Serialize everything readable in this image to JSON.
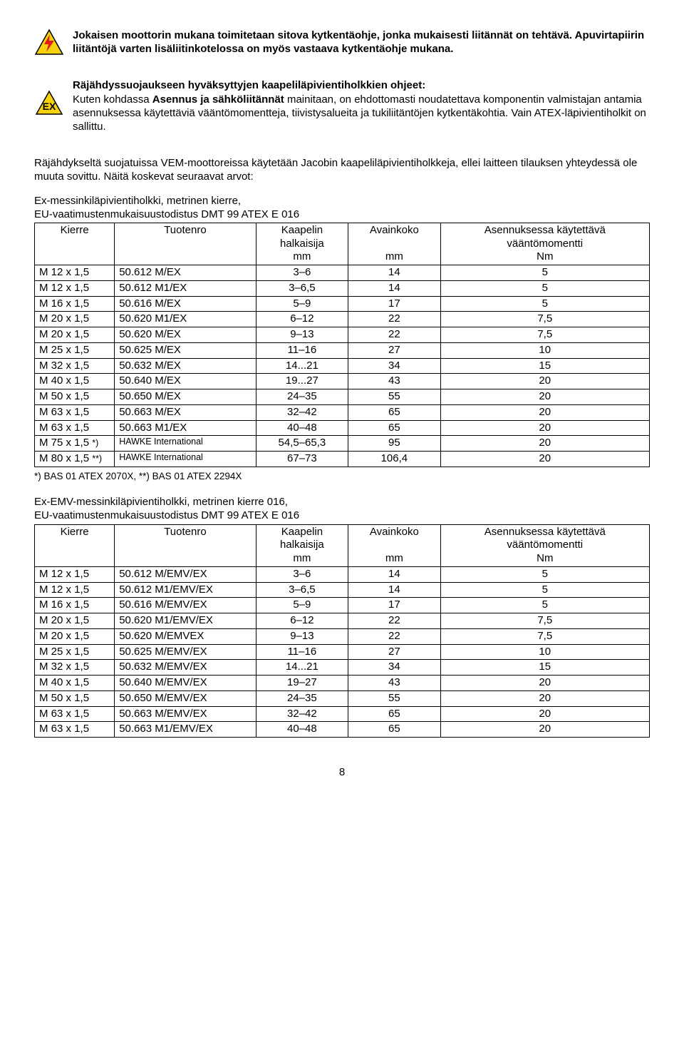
{
  "icons": {
    "warning": {
      "bg": "#f7d10e",
      "stroke": "#000",
      "bolt": "#e41c1c"
    },
    "ex": {
      "bg": "#f7d10e",
      "stroke": "#000",
      "text": "EX",
      "text_color": "#000"
    }
  },
  "p1": "Jokaisen moottorin mukana toimitetaan sitova kytkentäohje, jonka mukaisesti liitännät on tehtävä. Apuvirtapiirin liitäntöjä varten lisäliitinkotelossa on myös vastaava kytkentäohje mukana.",
  "p2_title": "Räjähdyssuojaukseen hyväksyttyjen kaapeliläpivientiholkkien ohjeet:",
  "p2_body_pre": "Kuten kohdassa ",
  "p2_body_bold": "Asennus ja sähköliitännät",
  "p2_body_post": " mainitaan, on ehdottomasti noudatettava komponentin valmistajan antamia asennuksessa käytettäviä vääntömomentteja, tiivistysalueita ja tukiliitäntöjen kytkentäkohtia. Vain ATEX-läpivientiholkit on sallittu.",
  "p3": "Räjähdykseltä suojatuissa VEM-moottoreissa käytetään Jacobin kaapeliläpivientiholkkeja, ellei laitteen tilauksen yhteydessä ole muuta sovittu. Näitä koskevat seuraavat arvot:",
  "table1": {
    "intro1": "Ex-messinkiläpivientiholkki, metrinen kierre,",
    "intro2": "EU-vaatimustenmukaisuustodistus DMT 99 ATEX E 016",
    "headers": {
      "c1": "Kierre",
      "c2": "Tuotenro",
      "c3a": "Kaapelin",
      "c3b": "halkaisija",
      "c3c": "mm",
      "c4a": "Avainkoko",
      "c4c": "mm",
      "c5a": "Asennuksessa käytettävä",
      "c5b": "vääntömomentti",
      "c5c": "Nm"
    },
    "rows": [
      [
        "M 12 x 1,5",
        "50.612 M/EX",
        "3–6",
        "14",
        "5"
      ],
      [
        "M 12 x 1,5",
        "50.612 M1/EX",
        "3–6,5",
        "14",
        "5"
      ],
      [
        "M 16 x 1,5",
        "50.616 M/EX",
        "5–9",
        "17",
        "5"
      ],
      [
        "M 20 x 1,5",
        "50.620 M1/EX",
        "6–12",
        "22",
        "7,5"
      ],
      [
        "M 20 x 1,5",
        "50.620 M/EX",
        "9–13",
        "22",
        "7,5"
      ],
      [
        "M 25 x 1,5",
        "50.625 M/EX",
        "11–16",
        "27",
        "10"
      ],
      [
        "M 32 x 1,5",
        "50.632 M/EX",
        "14...21",
        "34",
        "15"
      ],
      [
        "M 40 x 1,5",
        "50.640 M/EX",
        "19...27",
        "43",
        "20"
      ],
      [
        "M 50 x 1,5",
        "50.650 M/EX",
        "24–35",
        "55",
        "20"
      ],
      [
        "M 63 x 1,5",
        "50.663 M/EX",
        "32–42",
        "65",
        "20"
      ],
      [
        "M 63 x 1,5",
        "50.663 M1/EX",
        "40–48",
        "65",
        "20"
      ]
    ],
    "rows_special": [
      {
        "c1_pre": "M 75 x 1,5 ",
        "c1_suf": "*)",
        "c2": "HAWKE International",
        "c3": "54,5–65,3",
        "c4": "95",
        "c5": "20"
      },
      {
        "c1_pre": "M 80 x 1,5 ",
        "c1_suf": "**)",
        "c2": "HAWKE International",
        "c3": "67–73",
        "c4": "106,4",
        "c5": "20"
      }
    ],
    "footnote": "*) BAS 01 ATEX 2070X,  **) BAS 01 ATEX 2294X"
  },
  "table2": {
    "intro1": "Ex-EMV-messinkiläpivientiholkki, metrinen kierre 016,",
    "intro2": "EU-vaatimustenmukaisuustodistus DMT 99 ATEX E 016",
    "headers": {
      "c1": "Kierre",
      "c2": "Tuotenro",
      "c3a": "Kaapelin",
      "c3b": "halkaisija",
      "c3c": "mm",
      "c4a": "Avainkoko",
      "c4c": "mm",
      "c5a": "Asennuksessa käytettävä",
      "c5b": "vääntömomentti",
      "c5c": "Nm"
    },
    "rows": [
      [
        "M 12 x 1,5",
        "50.612 M/EMV/EX",
        "3–6",
        "14",
        "5"
      ],
      [
        "M 12 x 1,5",
        "50.612 M1/EMV/EX",
        "3–6,5",
        "14",
        "5"
      ],
      [
        "M 16 x 1,5",
        "50.616 M/EMV/EX",
        "5–9",
        "17",
        "5"
      ],
      [
        "M 20 x 1,5",
        "50.620 M1/EMV/EX",
        "6–12",
        "22",
        "7,5"
      ],
      [
        "M 20 x 1,5",
        "50.620 M/EMVEX",
        "9–13",
        "22",
        "7,5"
      ],
      [
        "M 25 x 1,5",
        "50.625 M/EMV/EX",
        "11–16",
        "27",
        "10"
      ],
      [
        "M 32 x 1,5",
        "50.632 M/EMV/EX",
        "14...21",
        "34",
        "15"
      ],
      [
        "M 40 x 1,5",
        "50.640 M/EMV/EX",
        "19–27",
        "43",
        "20"
      ],
      [
        "M 50 x 1,5",
        "50.650 M/EMV/EX",
        "24–35",
        "55",
        "20"
      ],
      [
        "M 63 x 1,5",
        "50.663 M/EMV/EX",
        "32–42",
        "65",
        "20"
      ],
      [
        "M 63 x 1,5",
        "50.663 M1/EMV/EX",
        "40–48",
        "65",
        "20"
      ]
    ]
  },
  "page_number": "8"
}
